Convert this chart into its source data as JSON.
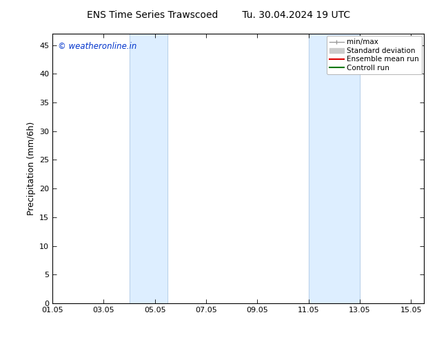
{
  "title_left": "ENS Time Series Trawscoed",
  "title_right": "Tu. 30.04.2024 19 UTC",
  "ylabel": "Precipitation (mm/6h)",
  "xlabel": "",
  "ylim": [
    0,
    47
  ],
  "yticks": [
    0,
    5,
    10,
    15,
    20,
    25,
    30,
    35,
    40,
    45
  ],
  "background_color": "#ffffff",
  "plot_bg_color": "#ffffff",
  "watermark": "© weatheronline.in",
  "watermark_color": "#0033cc",
  "shaded_bands": [
    {
      "xstart": 4.0,
      "xend": 5.5,
      "color": "#ddeeff"
    },
    {
      "xstart": 11.0,
      "xend": 13.0,
      "color": "#ddeeff"
    }
  ],
  "shade_edge_color": "#b8d0e8",
  "xmin": 1.0,
  "xmax": 15.5,
  "xtick_positions": [
    1.0,
    3.0,
    5.0,
    7.0,
    9.0,
    11.0,
    13.0,
    15.0
  ],
  "xtick_labels": [
    "01.05",
    "03.05",
    "05.05",
    "07.05",
    "09.05",
    "11.05",
    "13.05",
    "15.05"
  ],
  "title_fontsize": 10,
  "tick_fontsize": 8,
  "ylabel_fontsize": 9,
  "legend_fontsize": 7.5,
  "legend_handle_color_minmax": "#999999",
  "legend_handle_color_std": "#cccccc",
  "legend_handle_color_ensemble": "#dd0000",
  "legend_handle_color_control": "#007700",
  "spine_color": "#000000",
  "grid_color": "#cccccc"
}
